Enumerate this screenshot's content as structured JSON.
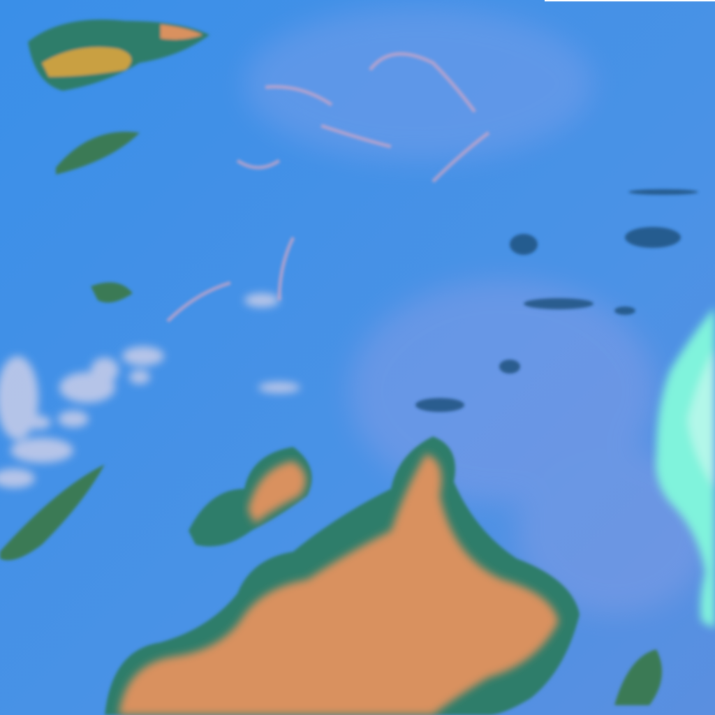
{
  "image": {
    "kind": "false-color satellite imagery",
    "colors": {
      "ocean": "#3d8fe6",
      "ocean_haze": "#7f9ee8",
      "low_cloud": "#c9cde9",
      "high_cloud": "#d9915f",
      "cloud_edge": "#2f7d6a",
      "ice_cloud": "#80f3dc",
      "dark_cloud": "#1f4f7a"
    }
  }
}
